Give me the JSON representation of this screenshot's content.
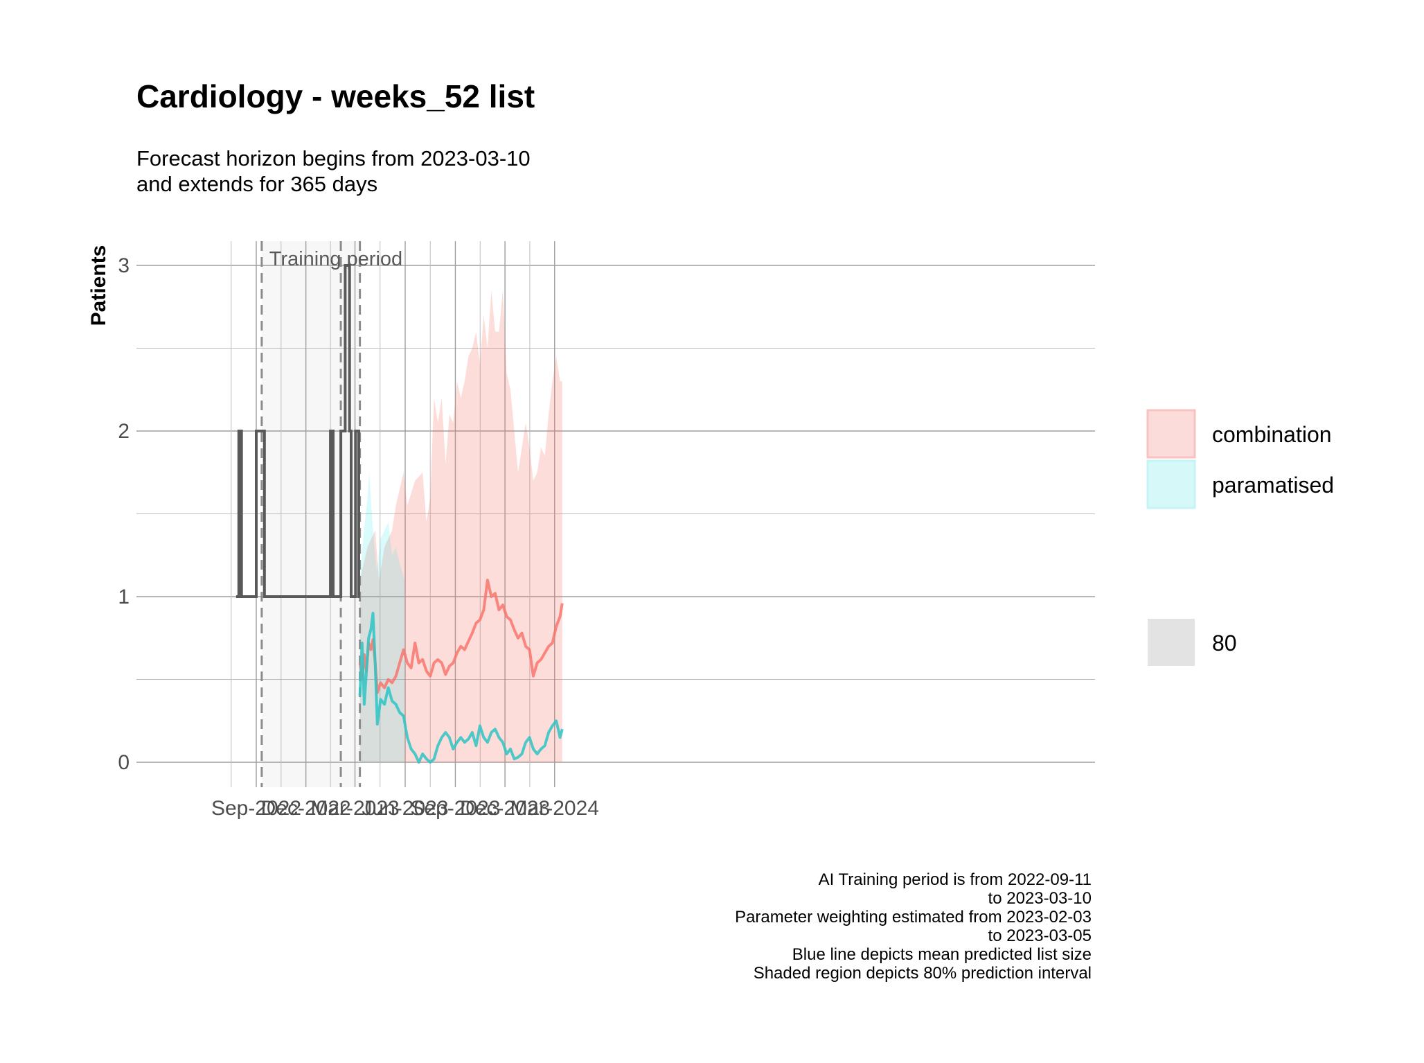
{
  "title": "Cardiology - weeks_52 list",
  "subtitle": "Forecast horizon begins from 2023-03-10\nand extends for 365 days",
  "caption": "AI Training period is from 2022-09-11\nto 2023-03-10\nParameter weighting estimated from 2023-02-03\nto 2023-03-05\nBlue line depicts mean predicted list size\nShaded region depicts 80% prediction interval",
  "chart_data": {
    "type": "line",
    "title": "Cardiology - weeks_52 list",
    "ylabel": "Patients",
    "xlabel": "",
    "x_range": [
      "2022-07-04",
      "2024-03-29"
    ],
    "ylim": [
      0,
      3
    ],
    "y_ticks": [
      0,
      1,
      2,
      3
    ],
    "x_ticks": [
      {
        "date": "2022-09-01",
        "label": "Sep-2022"
      },
      {
        "date": "2022-12-01",
        "label": "Dec-2022"
      },
      {
        "date": "2023-03-01",
        "label": "Mar-2023"
      },
      {
        "date": "2023-06-01",
        "label": "Jun-2023"
      },
      {
        "date": "2023-09-01",
        "label": "Sep-2023"
      },
      {
        "date": "2023-12-01",
        "label": "Dec-2023"
      },
      {
        "date": "2024-03-01",
        "label": "Mar-2024"
      }
    ],
    "training_period": {
      "start": "2022-09-11",
      "end": "2023-03-10",
      "label": "Training period"
    },
    "vlines": [
      "2022-09-11",
      "2023-02-03",
      "2023-03-10"
    ],
    "legend": {
      "position": "right",
      "fill_title": "",
      "fill_entries": [
        {
          "name": "combination",
          "color": "#f8766d"
        },
        {
          "name": "paramatised",
          "color": "#00e5ee"
        }
      ],
      "level_entries": [
        {
          "name": "80",
          "color": "#d9d9d9"
        }
      ]
    },
    "grid": true,
    "colors": {
      "actual": "#595959",
      "combination": "#f8766d",
      "paramatised": "#2ec4c4"
    },
    "actual": {
      "name": "actual",
      "points": [
        [
          "2022-07-26",
          1
        ],
        [
          "2022-07-31",
          1
        ],
        [
          "2022-07-31",
          2
        ],
        [
          "2022-08-05",
          2
        ],
        [
          "2022-08-05",
          1
        ],
        [
          "2022-09-01",
          1
        ],
        [
          "2022-09-01",
          2
        ],
        [
          "2022-09-16",
          2
        ],
        [
          "2022-09-16",
          1
        ],
        [
          "2023-01-15",
          1
        ],
        [
          "2023-01-15",
          2
        ],
        [
          "2023-01-20",
          2
        ],
        [
          "2023-01-20",
          1
        ],
        [
          "2023-02-03",
          1
        ],
        [
          "2023-02-03",
          2
        ],
        [
          "2023-02-11",
          2
        ],
        [
          "2023-02-11",
          3
        ],
        [
          "2023-02-19",
          3
        ],
        [
          "2023-02-19",
          2
        ],
        [
          "2023-02-22",
          2
        ],
        [
          "2023-02-22",
          1
        ],
        [
          "2023-03-02",
          1
        ],
        [
          "2023-03-02",
          2
        ],
        [
          "2023-03-08",
          2
        ],
        [
          "2023-03-08",
          1
        ],
        [
          "2023-03-10",
          1
        ]
      ]
    },
    "series": [
      {
        "name": "combination",
        "mean": [
          [
            "2023-03-10",
            0.6
          ],
          [
            "2023-03-14",
            0.5
          ],
          [
            "2023-03-18",
            0.65
          ],
          [
            "2023-03-22",
            0.55
          ],
          [
            "2023-03-26",
            0.72
          ],
          [
            "2023-03-30",
            0.68
          ],
          [
            "2023-04-03",
            0.74
          ],
          [
            "2023-04-07",
            0.6
          ],
          [
            "2023-04-11",
            0.42
          ],
          [
            "2023-04-17",
            0.48
          ],
          [
            "2023-04-24",
            0.45
          ],
          [
            "2023-05-01",
            0.5
          ],
          [
            "2023-05-08",
            0.48
          ],
          [
            "2023-05-15",
            0.52
          ],
          [
            "2023-05-22",
            0.6
          ],
          [
            "2023-05-29",
            0.68
          ],
          [
            "2023-06-05",
            0.6
          ],
          [
            "2023-06-12",
            0.57
          ],
          [
            "2023-06-19",
            0.72
          ],
          [
            "2023-06-26",
            0.6
          ],
          [
            "2023-07-03",
            0.62
          ],
          [
            "2023-07-10",
            0.55
          ],
          [
            "2023-07-17",
            0.52
          ],
          [
            "2023-07-24",
            0.6
          ],
          [
            "2023-07-31",
            0.62
          ],
          [
            "2023-08-07",
            0.6
          ],
          [
            "2023-08-14",
            0.53
          ],
          [
            "2023-08-21",
            0.58
          ],
          [
            "2023-08-28",
            0.6
          ],
          [
            "2023-09-04",
            0.66
          ],
          [
            "2023-09-11",
            0.7
          ],
          [
            "2023-09-18",
            0.68
          ],
          [
            "2023-09-25",
            0.73
          ],
          [
            "2023-10-02",
            0.78
          ],
          [
            "2023-10-09",
            0.84
          ],
          [
            "2023-10-16",
            0.86
          ],
          [
            "2023-10-23",
            0.92
          ],
          [
            "2023-10-30",
            1.1
          ],
          [
            "2023-11-06",
            1.0
          ],
          [
            "2023-11-13",
            1.02
          ],
          [
            "2023-11-20",
            0.92
          ],
          [
            "2023-11-27",
            0.95
          ],
          [
            "2023-12-04",
            0.88
          ],
          [
            "2023-12-11",
            0.86
          ],
          [
            "2023-12-18",
            0.8
          ],
          [
            "2023-12-25",
            0.75
          ],
          [
            "2024-01-01",
            0.78
          ],
          [
            "2024-01-08",
            0.7
          ],
          [
            "2024-01-15",
            0.68
          ],
          [
            "2024-01-22",
            0.52
          ],
          [
            "2024-01-29",
            0.6
          ],
          [
            "2024-02-05",
            0.62
          ],
          [
            "2024-02-12",
            0.66
          ],
          [
            "2024-02-19",
            0.7
          ],
          [
            "2024-02-26",
            0.72
          ],
          [
            "2024-03-04",
            0.82
          ],
          [
            "2024-03-11",
            0.88
          ],
          [
            "2024-03-15",
            0.96
          ]
        ],
        "lower": [
          [
            "2023-03-10",
            0.0
          ],
          [
            "2024-03-15",
            0.0
          ]
        ],
        "upper": [
          [
            "2023-03-10",
            1.1
          ],
          [
            "2023-03-24",
            1.3
          ],
          [
            "2023-04-07",
            1.4
          ],
          [
            "2023-04-14",
            1.1
          ],
          [
            "2023-04-24",
            1.3
          ],
          [
            "2023-05-08",
            1.4
          ],
          [
            "2023-05-15",
            1.55
          ],
          [
            "2023-05-29",
            1.75
          ],
          [
            "2023-06-05",
            1.55
          ],
          [
            "2023-06-19",
            1.7
          ],
          [
            "2023-07-03",
            1.75
          ],
          [
            "2023-07-10",
            1.45
          ],
          [
            "2023-07-17",
            1.6
          ],
          [
            "2023-07-24",
            2.2
          ],
          [
            "2023-07-31",
            2.05
          ],
          [
            "2023-08-07",
            2.2
          ],
          [
            "2023-08-14",
            1.8
          ],
          [
            "2023-08-21",
            2.1
          ],
          [
            "2023-08-28",
            2.05
          ],
          [
            "2023-09-04",
            2.3
          ],
          [
            "2023-09-11",
            2.2
          ],
          [
            "2023-09-18",
            2.3
          ],
          [
            "2023-09-25",
            2.45
          ],
          [
            "2023-10-02",
            2.5
          ],
          [
            "2023-10-09",
            2.6
          ],
          [
            "2023-10-16",
            2.4
          ],
          [
            "2023-10-23",
            2.7
          ],
          [
            "2023-10-30",
            2.5
          ],
          [
            "2023-11-06",
            2.85
          ],
          [
            "2023-11-13",
            2.6
          ],
          [
            "2023-11-20",
            2.6
          ],
          [
            "2023-11-27",
            2.85
          ],
          [
            "2023-12-04",
            2.35
          ],
          [
            "2023-12-11",
            2.25
          ],
          [
            "2023-12-18",
            2.0
          ],
          [
            "2023-12-25",
            1.75
          ],
          [
            "2024-01-01",
            1.9
          ],
          [
            "2024-01-08",
            2.05
          ],
          [
            "2024-01-15",
            1.9
          ],
          [
            "2024-01-22",
            1.7
          ],
          [
            "2024-01-29",
            1.75
          ],
          [
            "2024-02-05",
            1.9
          ],
          [
            "2024-02-12",
            1.85
          ],
          [
            "2024-02-19",
            2.1
          ],
          [
            "2024-02-26",
            2.3
          ],
          [
            "2024-03-04",
            2.45
          ],
          [
            "2024-03-11",
            2.3
          ],
          [
            "2024-03-15",
            2.3
          ]
        ]
      },
      {
        "name": "paramatised",
        "mean": [
          [
            "2023-03-10",
            0.4
          ],
          [
            "2023-03-14",
            0.72
          ],
          [
            "2023-03-18",
            0.35
          ],
          [
            "2023-03-22",
            0.55
          ],
          [
            "2023-03-26",
            0.75
          ],
          [
            "2023-03-30",
            0.8
          ],
          [
            "2023-04-03",
            0.9
          ],
          [
            "2023-04-07",
            0.6
          ],
          [
            "2023-04-11",
            0.23
          ],
          [
            "2023-04-17",
            0.38
          ],
          [
            "2023-04-24",
            0.35
          ],
          [
            "2023-05-01",
            0.45
          ],
          [
            "2023-05-08",
            0.37
          ],
          [
            "2023-05-15",
            0.35
          ],
          [
            "2023-05-22",
            0.3
          ],
          [
            "2023-05-29",
            0.28
          ],
          [
            "2023-06-05",
            0.15
          ],
          [
            "2023-06-12",
            0.08
          ],
          [
            "2023-06-19",
            0.05
          ],
          [
            "2023-06-26",
            0.0
          ],
          [
            "2023-07-03",
            0.05
          ],
          [
            "2023-07-10",
            0.02
          ],
          [
            "2023-07-17",
            0.0
          ],
          [
            "2023-07-24",
            0.02
          ],
          [
            "2023-07-31",
            0.1
          ],
          [
            "2023-08-07",
            0.15
          ],
          [
            "2023-08-14",
            0.18
          ],
          [
            "2023-08-21",
            0.15
          ],
          [
            "2023-08-28",
            0.08
          ],
          [
            "2023-09-04",
            0.12
          ],
          [
            "2023-09-11",
            0.15
          ],
          [
            "2023-09-18",
            0.12
          ],
          [
            "2023-09-25",
            0.14
          ],
          [
            "2023-10-02",
            0.18
          ],
          [
            "2023-10-09",
            0.1
          ],
          [
            "2023-10-16",
            0.22
          ],
          [
            "2023-10-23",
            0.15
          ],
          [
            "2023-10-30",
            0.12
          ],
          [
            "2023-11-06",
            0.18
          ],
          [
            "2023-11-13",
            0.2
          ],
          [
            "2023-11-20",
            0.15
          ],
          [
            "2023-11-27",
            0.12
          ],
          [
            "2023-12-04",
            0.05
          ],
          [
            "2023-12-11",
            0.08
          ],
          [
            "2023-12-18",
            0.02
          ],
          [
            "2023-12-25",
            0.03
          ],
          [
            "2024-01-01",
            0.05
          ],
          [
            "2024-01-08",
            0.12
          ],
          [
            "2024-01-15",
            0.15
          ],
          [
            "2024-01-22",
            0.08
          ],
          [
            "2024-01-29",
            0.05
          ],
          [
            "2024-02-05",
            0.08
          ],
          [
            "2024-02-12",
            0.1
          ],
          [
            "2024-02-19",
            0.18
          ],
          [
            "2024-02-26",
            0.22
          ],
          [
            "2024-03-04",
            0.25
          ],
          [
            "2024-03-11",
            0.15
          ],
          [
            "2024-03-15",
            0.2
          ]
        ],
        "lower": [
          [
            "2023-03-10",
            0.0
          ],
          [
            "2023-05-31",
            0.0
          ]
        ],
        "upper": [
          [
            "2023-03-10",
            1.1
          ],
          [
            "2023-03-16",
            1.35
          ],
          [
            "2023-03-24",
            1.6
          ],
          [
            "2023-03-27",
            1.75
          ],
          [
            "2023-04-02",
            1.45
          ],
          [
            "2023-04-10",
            1.15
          ],
          [
            "2023-04-17",
            1.35
          ],
          [
            "2023-04-24",
            1.4
          ],
          [
            "2023-05-01",
            1.45
          ],
          [
            "2023-05-08",
            1.25
          ],
          [
            "2023-05-15",
            1.3
          ],
          [
            "2023-05-22",
            1.2
          ],
          [
            "2023-05-31",
            1.1
          ]
        ]
      }
    ]
  }
}
